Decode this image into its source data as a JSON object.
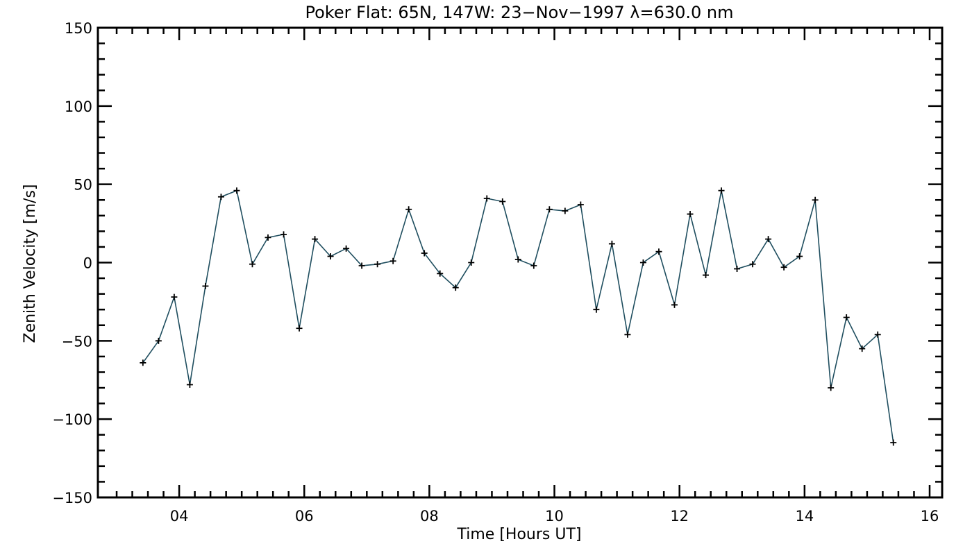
{
  "chart_data": {
    "type": "line",
    "title": "Poker Flat: 65N, 147W: 23−Nov−1997 λ=630.0 nm",
    "xlabel": "Time [Hours UT]",
    "ylabel": "Zenith Velocity [m/s]",
    "xlim": [
      2.7,
      16.2
    ],
    "ylim": [
      -150,
      150
    ],
    "x_tick_labels": [
      "04",
      "06",
      "08",
      "10",
      "12",
      "14",
      "16"
    ],
    "y_tick_labels": [
      "−150",
      "−100",
      "−50",
      "0",
      "50",
      "100",
      "150"
    ],
    "grid": false,
    "line_color": "#1f4e5f",
    "marker": "plus",
    "series": [
      {
        "x": [
          3.42,
          3.67,
          3.92,
          4.17,
          4.42,
          4.67,
          4.92,
          5.17,
          5.42,
          5.67,
          5.92,
          6.17,
          6.42,
          6.67,
          6.92,
          7.17,
          7.42,
          7.67,
          7.92,
          8.17,
          8.42,
          8.67,
          8.92,
          9.17,
          9.42,
          9.67,
          9.92,
          10.17,
          10.42,
          10.67,
          10.92,
          11.17,
          11.42,
          11.67,
          11.92,
          12.17,
          12.42,
          12.67,
          12.92,
          13.17,
          13.42,
          13.67,
          13.92,
          14.17,
          14.42,
          14.67,
          14.92,
          15.17,
          15.42
        ],
        "y": [
          -64,
          -50,
          -22,
          -78,
          -15,
          42,
          46,
          -1,
          16,
          18,
          -42,
          15,
          4,
          9,
          -2,
          -1,
          1,
          34,
          6,
          -7,
          -16,
          0,
          41,
          39,
          2,
          -2,
          34,
          33,
          37,
          -30,
          12,
          -46,
          0,
          7,
          -27,
          31,
          -8,
          46,
          -4,
          -1,
          15,
          -3,
          4,
          40,
          -80,
          -35,
          -55,
          -46,
          -115
        ]
      }
    ]
  }
}
